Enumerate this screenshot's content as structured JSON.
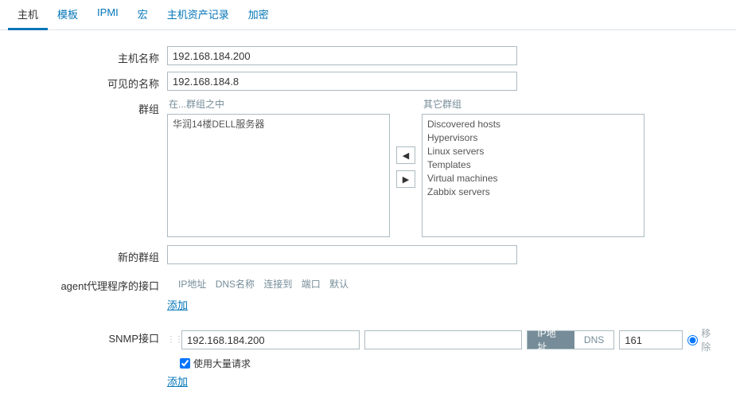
{
  "tabs": {
    "host": "主机",
    "templates": "模板",
    "ipmi": "IPMI",
    "macros": "宏",
    "inventory": "主机资产记录",
    "encryption": "加密"
  },
  "labels": {
    "hostname": "主机名称",
    "visible_name": "可见的名称",
    "groups": "群组",
    "in_groups": "在...群组之中",
    "other_groups": "其它群组",
    "new_group": "新的群组",
    "agent_iface": "agent代理程序的接口",
    "snmp_iface": "SNMP接口"
  },
  "values": {
    "hostname": "192.168.184.200",
    "visible_name": "192.168.184.8",
    "new_group": ""
  },
  "groups_in": [
    "华润14楼DELL服务器"
  ],
  "groups_other": [
    "Discovered hosts",
    "Hypervisors",
    "Linux servers",
    "Templates",
    "Virtual machines",
    "Zabbix servers"
  ],
  "iface_headers": {
    "ip": "IP地址",
    "dns": "DNS名称",
    "connect": "连接到",
    "port": "端口",
    "default": "默认"
  },
  "actions": {
    "add": "添加",
    "remove": "移除"
  },
  "snmp": {
    "ip": "192.168.184.200",
    "dns": "",
    "conn_ip": "IP地址",
    "conn_dns": "DNS",
    "port": "161",
    "bulk_label": "使用大量请求",
    "bulk_checked": true
  },
  "colors": {
    "link": "#0275b8",
    "green_border": "#a6d8a8",
    "muted": "#768d99"
  }
}
